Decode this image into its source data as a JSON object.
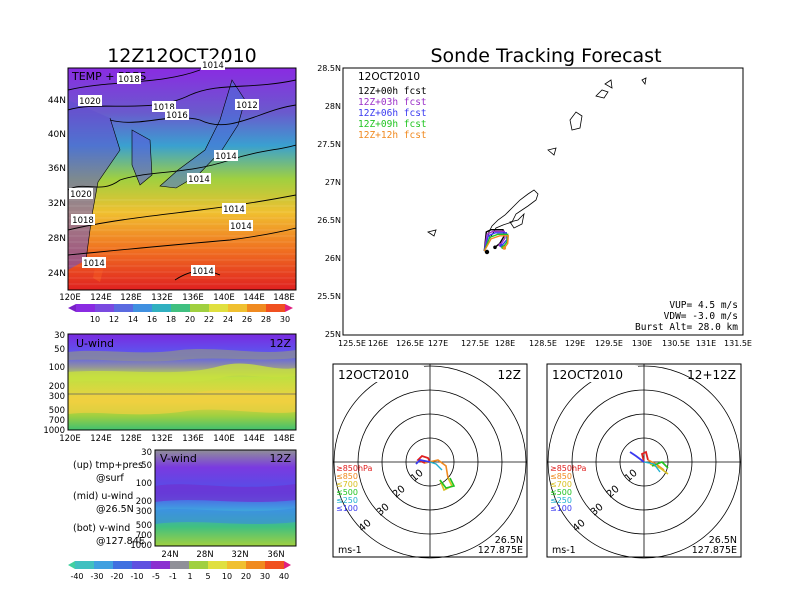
{
  "left": {
    "title": "12Z12OCT2010",
    "map": {
      "label": "TEMP + PRES",
      "lat_ticks": [
        "44N",
        "40N",
        "36N",
        "32N",
        "28N",
        "24N"
      ],
      "lon_ticks": [
        "120E",
        "124E",
        "128E",
        "132E",
        "136E",
        "140E",
        "144E",
        "148E"
      ],
      "isobars": [
        "1018",
        "1020",
        "1018",
        "1016",
        "1012",
        "1014",
        "1014",
        "1020",
        "1018",
        "1014",
        "1014",
        "1014",
        "1014",
        "1014"
      ]
    },
    "temp_colorbar": [
      "10",
      "12",
      "14",
      "16",
      "18",
      "20",
      "22",
      "24",
      "26",
      "28",
      "30"
    ],
    "uwind": {
      "label": "U-wind",
      "time": "12Z",
      "p_ticks": [
        "30",
        "50",
        "100",
        "200",
        "300",
        "500",
        "700",
        "1000"
      ],
      "lon_ticks": [
        "120E",
        "124E",
        "128E",
        "132E",
        "136E",
        "140E",
        "144E",
        "148E"
      ]
    },
    "vwind": {
      "label": "V-wind",
      "time": "12Z",
      "p_ticks": [
        "30",
        "50",
        "100",
        "200",
        "300",
        "500",
        "700",
        "1000"
      ],
      "lat_ticks": [
        "24N",
        "28N",
        "32N",
        "36N"
      ]
    },
    "wind_colorbar": [
      "-40",
      "-30",
      "-20",
      "-10",
      "-5",
      "-1",
      "1",
      "5",
      "10",
      "20",
      "30",
      "40"
    ],
    "legend": {
      "line1": "(up) tmp+pres",
      "line2": "@surf",
      "line3": "(mid) u-wind",
      "line4": "@26.5N",
      "line5": "(bot) v-wind",
      "line6": "@127.84E"
    }
  },
  "right": {
    "title": "Sonde Tracking Forecast",
    "track": {
      "date": "12OCT2010",
      "fcst": [
        {
          "label": "12Z+00h  fcst",
          "color": "#000000"
        },
        {
          "label": "12Z+03h  fcst",
          "color": "#9b30c8"
        },
        {
          "label": "12Z+06h  fcst",
          "color": "#3a3af0"
        },
        {
          "label": "12Z+09h  fcst",
          "color": "#22c422"
        },
        {
          "label": "12Z+12h  fcst",
          "color": "#f08a20"
        }
      ],
      "lat_ticks": [
        "28.5N",
        "28N",
        "27.5N",
        "27N",
        "26.5N",
        "26N",
        "25.5N",
        "25N"
      ],
      "lon_ticks": [
        "125.5E",
        "126E",
        "126.5E",
        "127E",
        "127.5E",
        "128E",
        "128.5E",
        "129E",
        "129.5E",
        "130E",
        "130.5E",
        "131E",
        "131.5E"
      ],
      "vup": "VUP=  4.5  m/s",
      "vdw": "VDW= -3.0  m/s",
      "burst": "Burst Alt= 28.0  km"
    },
    "hodo1": {
      "date": "12OCT2010",
      "time": "12Z",
      "rings": [
        "10",
        "20",
        "30",
        "40"
      ],
      "pres_labels": [
        {
          "text": "≥850hPa",
          "color": "#e02020"
        },
        {
          "text": "≤850",
          "color": "#f08a20"
        },
        {
          "text": "≤700",
          "color": "#d8c020"
        },
        {
          "text": "≤500",
          "color": "#22c422"
        },
        {
          "text": "≤250",
          "color": "#20b0d0"
        },
        {
          "text": "≤100",
          "color": "#3a3af0"
        }
      ],
      "units": "ms-1",
      "lat": "26.5N",
      "lon": "127.875E"
    },
    "hodo2": {
      "date": "12OCT2010",
      "time": "12+12Z",
      "rings": [
        "10",
        "20",
        "30",
        "40"
      ],
      "pres_labels": [
        {
          "text": "≥850hPa",
          "color": "#e02020"
        },
        {
          "text": "≤850",
          "color": "#f08a20"
        },
        {
          "text": "≤700",
          "color": "#d8c020"
        },
        {
          "text": "≤500",
          "color": "#22c422"
        },
        {
          "text": "≤250",
          "color": "#20b0d0"
        },
        {
          "text": "≤100",
          "color": "#3a3af0"
        }
      ],
      "units": "ms-1",
      "lat": "26.5N",
      "lon": "127.875E"
    }
  },
  "chart_data": [
    {
      "type": "line",
      "title": "Sonde Tracking Forecast",
      "xlim": [
        125.5,
        131.5
      ],
      "ylim": [
        25,
        28.5
      ],
      "series": [
        {
          "name": "12Z+00h  fcst",
          "x": [
            127.62,
            127.65,
            127.72,
            127.9,
            127.92,
            127.85,
            127.78
          ],
          "y": [
            26.1,
            26.35,
            26.38,
            26.38,
            26.3,
            26.2,
            26.15
          ]
        },
        {
          "name": "12Z+03h  fcst",
          "x": [
            127.62,
            127.66,
            127.75,
            127.92,
            127.93,
            127.86
          ],
          "y": [
            26.1,
            26.32,
            26.36,
            26.36,
            26.27,
            26.18
          ]
        },
        {
          "name": "12Z+06h  fcst",
          "x": [
            127.62,
            127.68,
            127.78,
            127.95,
            127.96,
            127.88
          ],
          "y": [
            26.1,
            26.3,
            26.34,
            26.34,
            26.25,
            26.17
          ]
        },
        {
          "name": "12Z+09h  fcst",
          "x": [
            127.62,
            127.7,
            127.82,
            127.97,
            127.96,
            127.9
          ],
          "y": [
            26.1,
            26.28,
            26.32,
            26.32,
            26.22,
            26.15
          ]
        },
        {
          "name": "12Z+12h  fcst",
          "x": [
            127.62,
            127.72,
            127.85,
            127.98,
            127.97,
            127.92
          ],
          "y": [
            26.1,
            26.26,
            26.3,
            26.3,
            26.2,
            26.14
          ]
        }
      ]
    }
  ]
}
